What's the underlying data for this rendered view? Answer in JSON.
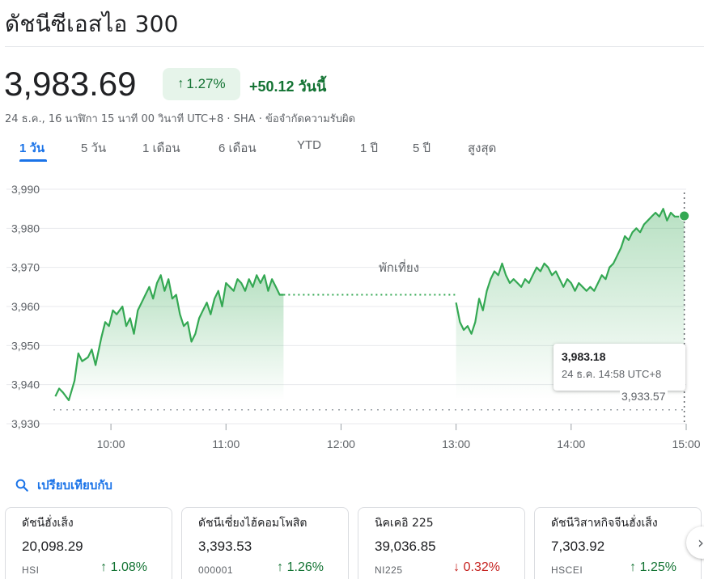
{
  "header": {
    "title": "ดัชนีซีเอสไอ 300"
  },
  "quote": {
    "price": "3,983.69",
    "pct_arrow": "↑",
    "pct": "1.27%",
    "change": "+50.12",
    "period": "วันนี้"
  },
  "meta": {
    "timestamp": "24 ธ.ค., 16 นาฬิกา 15 นาที 00 วินาที UTC+8",
    "sep1": " · ",
    "exchange": "SHA",
    "sep2": " · ",
    "disclaimer": "ข้อจำกัดความรับผิด"
  },
  "tabs": [
    {
      "label": "1 วัน",
      "active": true
    },
    {
      "label": "5 วัน"
    },
    {
      "label": "1 เดือน"
    },
    {
      "label": "6 เดือน"
    },
    {
      "label": "YTD"
    },
    {
      "label": "1 ปี"
    },
    {
      "label": "5 ปี"
    },
    {
      "label": "สูงสุด"
    }
  ],
  "chart_data": {
    "type": "area",
    "y_ticks": [
      "3,990",
      "3,980",
      "3,970",
      "3,960",
      "3,950",
      "3,940",
      "3,930"
    ],
    "ylim": [
      3930,
      3990
    ],
    "x_ticks": [
      "10:00",
      "11:00",
      "12:00",
      "13:00",
      "14:00",
      "15:00"
    ],
    "xlim_minutes": [
      570,
      900
    ],
    "break_label": "พักเที่ยง",
    "previous_close": 3933.57,
    "previous_close_label": "3,933.57",
    "series": [
      {
        "x": [
          571,
          573,
          575,
          578,
          581,
          583,
          585,
          588,
          590,
          592,
          595,
          597,
          599,
          601,
          603,
          606,
          608,
          610,
          612,
          614,
          616,
          618,
          620,
          622,
          624,
          626,
          628,
          630,
          632,
          634,
          636,
          638,
          640,
          642,
          644,
          646,
          648,
          650,
          652,
          654,
          656,
          658,
          660,
          662,
          664,
          666,
          668,
          670,
          672,
          674,
          676,
          678,
          680,
          682,
          684,
          686,
          688,
          690
        ],
        "y": [
          3937,
          3939,
          3938,
          3936,
          3941,
          3948,
          3946,
          3947,
          3949,
          3945,
          3952,
          3956,
          3955,
          3959,
          3958,
          3960,
          3955,
          3957,
          3953,
          3959,
          3961,
          3963,
          3965,
          3962,
          3966,
          3968,
          3964,
          3967,
          3962,
          3963,
          3958,
          3955,
          3956,
          3951,
          3953,
          3957,
          3959,
          3961,
          3958,
          3962,
          3964,
          3960,
          3966,
          3965,
          3964,
          3967,
          3966,
          3964,
          3967,
          3965,
          3968,
          3966,
          3968,
          3964,
          3967,
          3965,
          3963,
          3963
        ]
      },
      {
        "x": [
          780,
          782,
          784,
          786,
          788,
          790,
          792,
          794,
          796,
          798,
          800,
          802,
          804,
          806,
          808,
          810,
          812,
          814,
          816,
          818,
          820,
          822,
          824,
          826,
          828,
          830,
          832,
          834,
          836,
          838,
          840,
          842,
          844,
          846,
          848,
          850,
          852,
          854,
          856,
          858,
          860,
          862,
          864,
          866,
          868,
          870,
          872,
          874,
          876,
          878,
          880,
          882,
          884,
          886,
          888,
          890,
          892,
          894,
          896,
          898,
          899
        ],
        "y": [
          3961,
          3956,
          3954,
          3955,
          3953,
          3956,
          3962,
          3959,
          3964,
          3967,
          3969,
          3968,
          3971,
          3968,
          3966,
          3967,
          3966,
          3965,
          3967,
          3966,
          3968,
          3970,
          3969,
          3971,
          3970,
          3968,
          3969,
          3967,
          3965,
          3967,
          3966,
          3964,
          3966,
          3965,
          3964,
          3965,
          3964,
          3966,
          3968,
          3967,
          3970,
          3971,
          3973,
          3975,
          3978,
          3977,
          3979,
          3980,
          3979,
          3981,
          3982,
          3983,
          3984,
          3983,
          3985,
          3982,
          3984,
          3983,
          3983,
          3983,
          3983.18
        ]
      }
    ],
    "grid": true,
    "tooltip": {
      "value": "3,983.18",
      "time": "24 ธ.ค. 14:58 UTC+8"
    },
    "colors": {
      "line": "#34a853",
      "fill": "#e6f4ea",
      "grid": "#e8eaed",
      "axis_text": "#5f6368"
    }
  },
  "compare": {
    "label": "เปรียบเทียบกับ",
    "icon": "search-icon"
  },
  "cards": [
    {
      "name": "ดัชนีฮั่งเส็ง",
      "value": "20,098.29",
      "symbol": "HSI",
      "arrow": "↑",
      "change": "1.08%",
      "direction": "up"
    },
    {
      "name": "ดัชนีเซี่ยงไฮ้คอมโพสิต",
      "value": "3,393.53",
      "symbol": "000001",
      "arrow": "↑",
      "change": "1.26%",
      "direction": "up"
    },
    {
      "name": "นิคเคอิ 225",
      "value": "39,036.85",
      "symbol": "NI225",
      "arrow": "↓",
      "change": "0.32%",
      "direction": "down"
    },
    {
      "name": "ดัชนีวิสาหกิจจีนฮั่งเส็ง",
      "value": "7,303.92",
      "symbol": "HSCEI",
      "arrow": "↑",
      "change": "1.25%",
      "direction": "up"
    }
  ],
  "next_button": {
    "icon": "chevron-right-icon",
    "glyph": "›"
  }
}
